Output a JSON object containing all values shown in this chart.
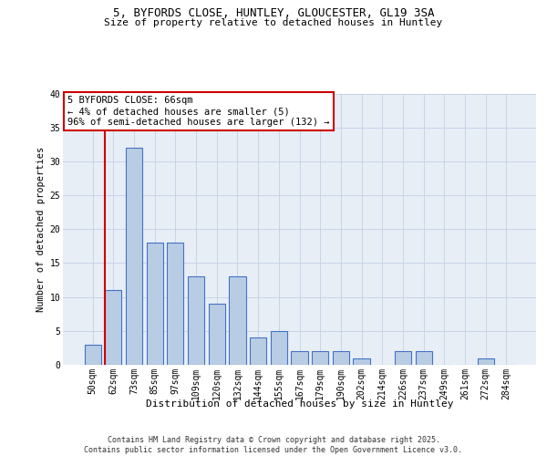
{
  "title_line1": "5, BYFORDS CLOSE, HUNTLEY, GLOUCESTER, GL19 3SA",
  "title_line2": "Size of property relative to detached houses in Huntley",
  "xlabel": "Distribution of detached houses by size in Huntley",
  "ylabel": "Number of detached properties",
  "categories": [
    "50sqm",
    "62sqm",
    "73sqm",
    "85sqm",
    "97sqm",
    "109sqm",
    "120sqm",
    "132sqm",
    "144sqm",
    "155sqm",
    "167sqm",
    "179sqm",
    "190sqm",
    "202sqm",
    "214sqm",
    "226sqm",
    "237sqm",
    "249sqm",
    "261sqm",
    "272sqm",
    "284sqm"
  ],
  "values": [
    3,
    11,
    32,
    18,
    18,
    13,
    9,
    13,
    4,
    5,
    2,
    2,
    2,
    1,
    0,
    2,
    2,
    0,
    0,
    1,
    0
  ],
  "bar_color": "#b8cce4",
  "bar_edge_color": "#4472c4",
  "grid_color": "#c8d4e8",
  "background_color": "#e8eef6",
  "marker_col_index": 1,
  "marker_color": "#cc0000",
  "annotation_text": "5 BYFORDS CLOSE: 66sqm\n← 4% of detached houses are smaller (5)\n96% of semi-detached houses are larger (132) →",
  "annotation_box_facecolor": "#ffffff",
  "annotation_border_color": "#cc0000",
  "footer_text": "Contains HM Land Registry data © Crown copyright and database right 2025.\nContains public sector information licensed under the Open Government Licence v3.0.",
  "ylim": [
    0,
    40
  ],
  "yticks": [
    0,
    5,
    10,
    15,
    20,
    25,
    30,
    35,
    40
  ],
  "title1_fontsize": 9,
  "title2_fontsize": 8,
  "ylabel_fontsize": 7.5,
  "xlabel_fontsize": 8,
  "tick_fontsize": 7,
  "annot_fontsize": 7.5,
  "footer_fontsize": 6
}
